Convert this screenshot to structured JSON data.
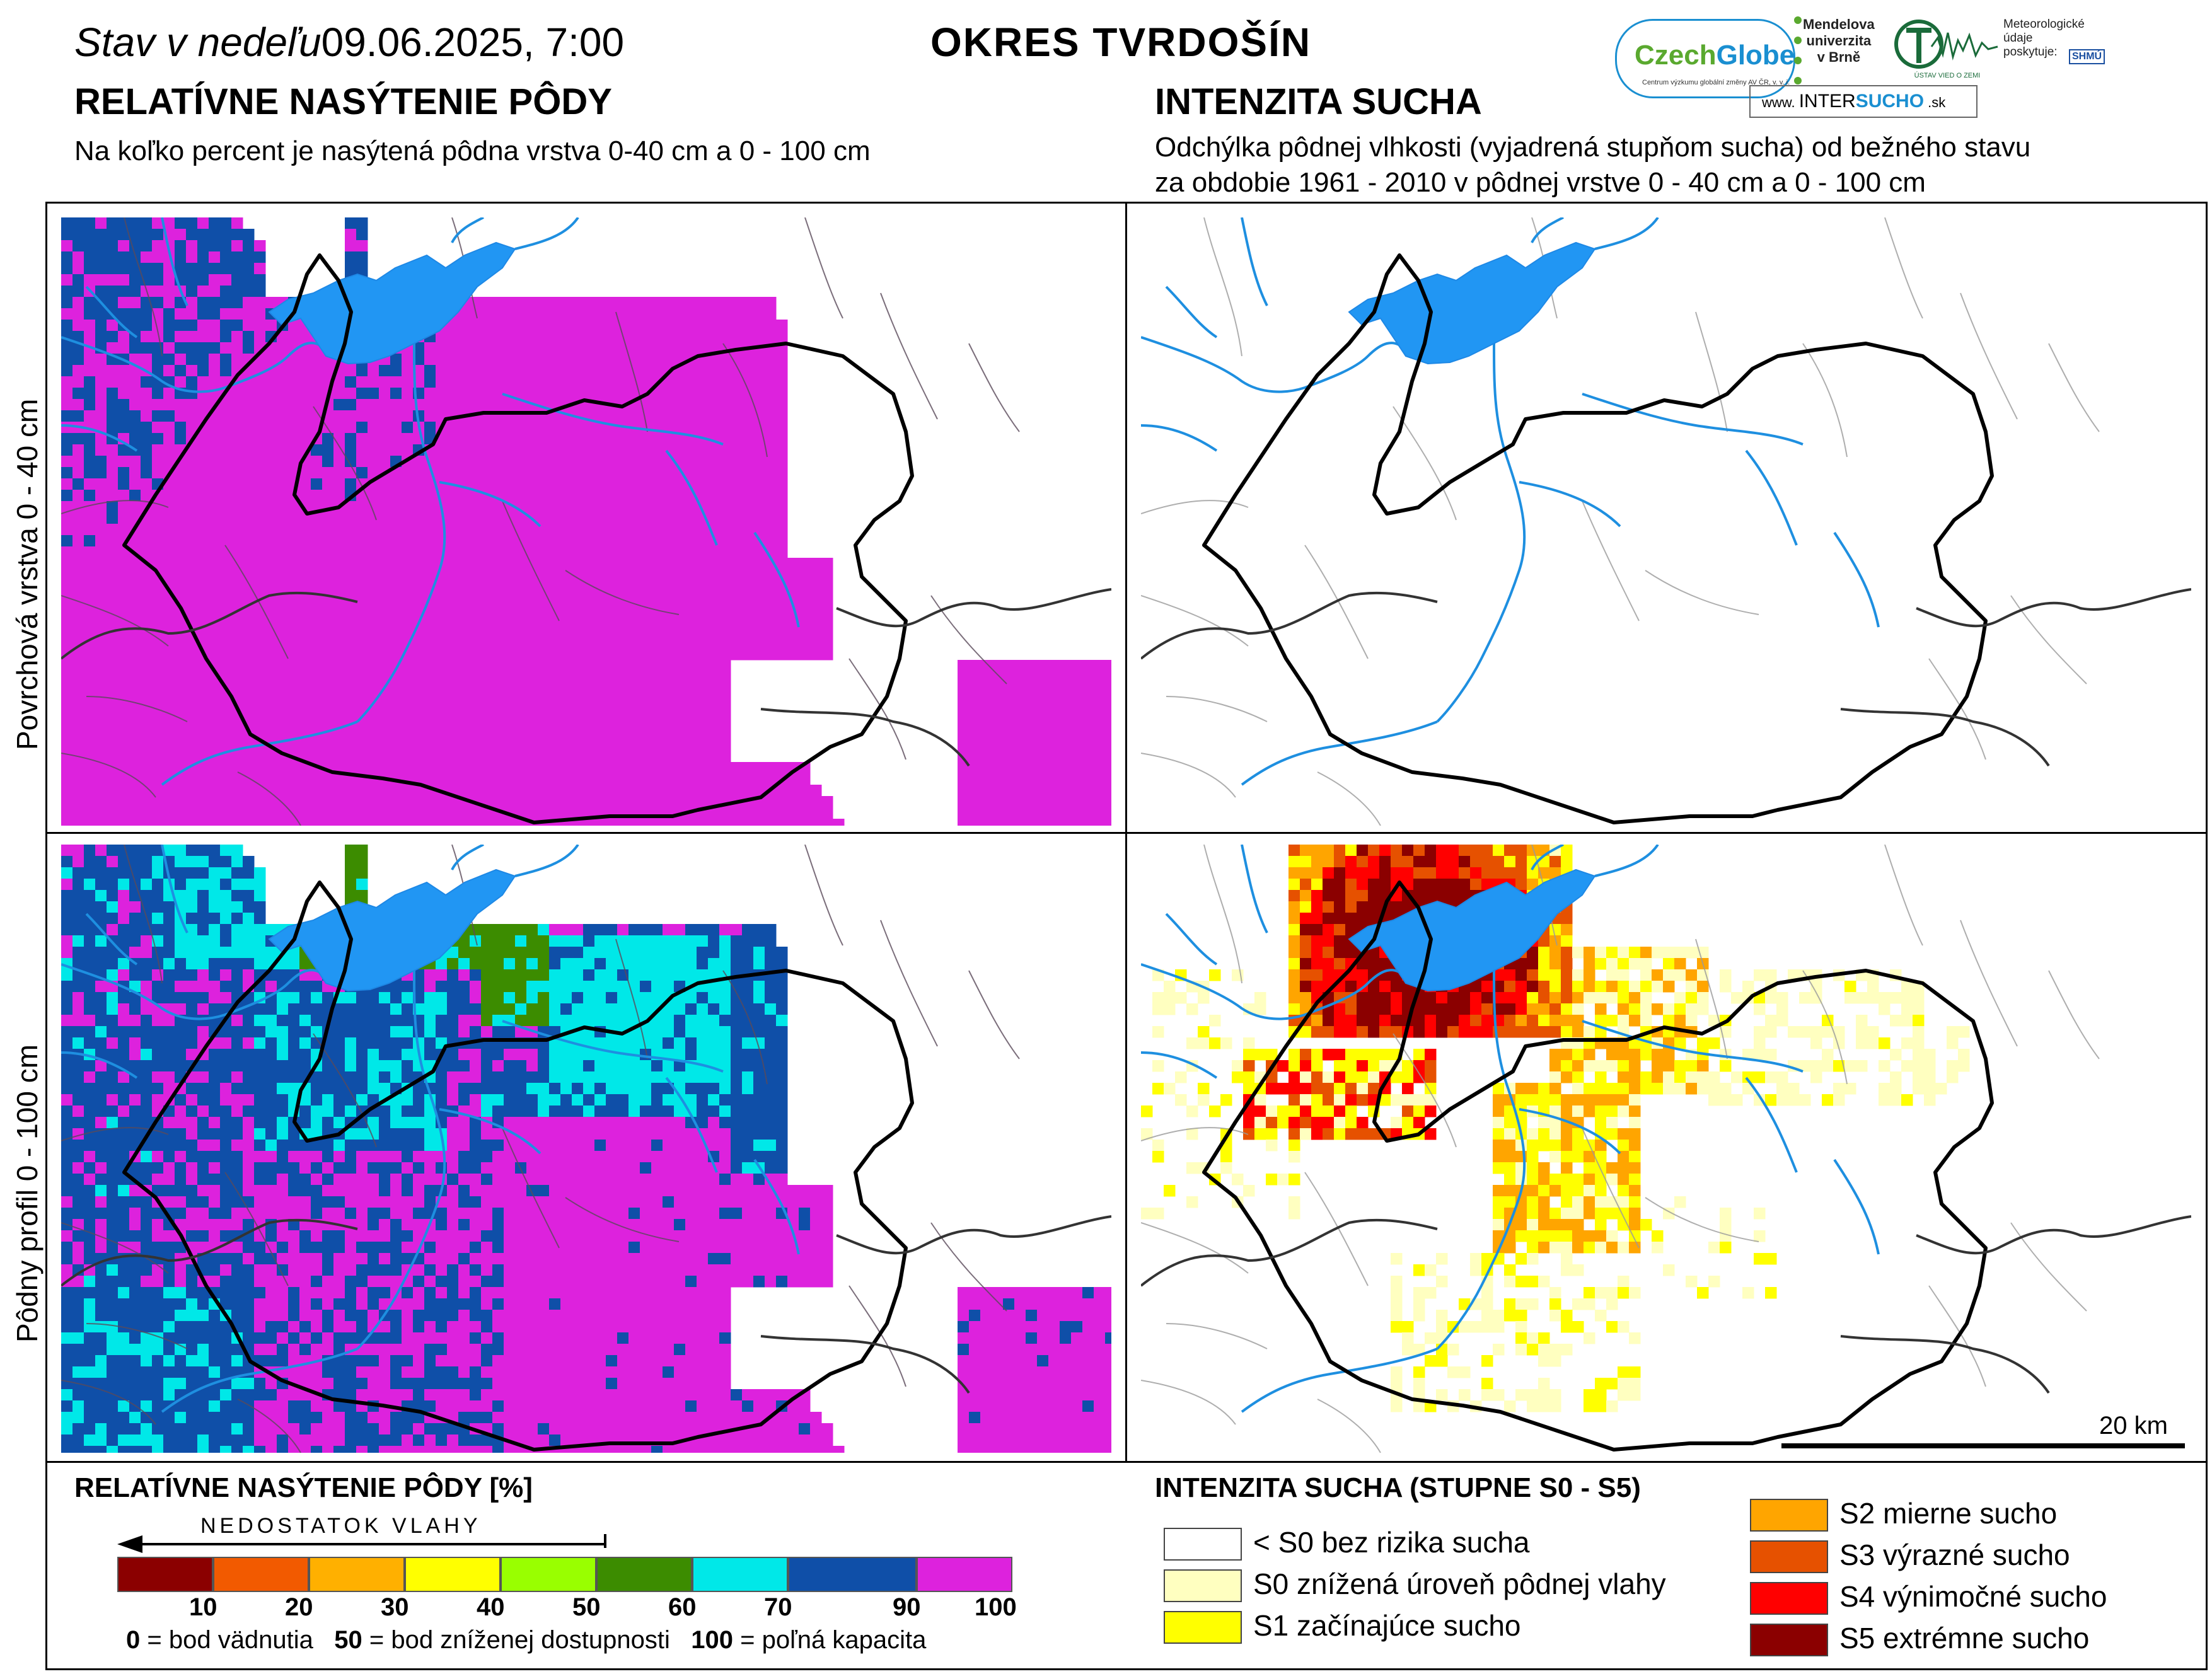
{
  "header": {
    "status_prefix": "Stav v nedeľu",
    "status_date": "09.06.2025, 7:00",
    "district": "OKRES  TVRDOŠÍN"
  },
  "left_section": {
    "title": "RELATÍVNE NASÝTENIE PÔDY",
    "subtitle": "Na koľko percent je nasýtená pôdna vrstva 0-40 cm a 0 - 100 cm"
  },
  "right_section": {
    "title": "INTENZITA SUCHA",
    "subtitle_line1": "Odchýlka pôdnej vlhkosti (vyjadrená stupňom sucha) od bežného stavu",
    "subtitle_line2": "za obdobie 1961 - 2010 v pôdnej vrstve 0 - 40 cm a 0 - 100 cm"
  },
  "row_labels": {
    "top": "Povrchová vrstva 0 - 40 cm",
    "bottom": "Pôdny profil 0 - 100 cm"
  },
  "logos": {
    "czechglobe_a": "Czech",
    "czechglobe_b": "Globe",
    "czechglobe_sub": "Centrum výzkumu globální změny AV ČR, v. v. i.",
    "mendel_1": "Mendelova",
    "mendel_2": "univerzita",
    "mendel_3": "v Brně",
    "uvz": "ÚSTAV VIED O ZEMI",
    "meteo_1": "Meteorologické",
    "meteo_2": "údaje",
    "meteo_3": "poskytuje:",
    "shmu": "SHMÚ",
    "intersucho_a": "www. ",
    "intersucho_b": "INTER",
    "intersucho_c": "SUCHO",
    "intersucho_d": " .sk"
  },
  "scale_bar": {
    "label": "20 km"
  },
  "legend_saturation": {
    "title": "RELATÍVNE NASÝTENIE PÔDY [%]",
    "arrow_label": "NEDOSTATOK VLAHY",
    "colors": [
      "#8b0000",
      "#f25a00",
      "#ffb000",
      "#ffff00",
      "#99ff00",
      "#3c8c00",
      "#00e8e8",
      "#0f4fa8",
      "#dd22dd"
    ],
    "ticks": [
      "10",
      "20",
      "30",
      "40",
      "50",
      "60",
      "70",
      "90",
      "100"
    ],
    "note_0_val": "0",
    "note_0_txt": " = bod vädnutia",
    "note_50_val": "50",
    "note_50_txt": " = bod zníženej dostupnosti",
    "note_100_val": "100",
    "note_100_txt": " = poľná kapacita"
  },
  "legend_drought": {
    "title": "INTENZITA SUCHA (STUPNE S0 - S5)",
    "items": [
      {
        "label": "< S0 bez rizika sucha",
        "color": "#ffffff"
      },
      {
        "label": "S0 znížená úroveň pôdnej vlahy",
        "color": "#ffffc0"
      },
      {
        "label": "S1 začínajúce sucho",
        "color": "#ffff00"
      },
      {
        "label": "S2 mierne sucho",
        "color": "#ffa500"
      },
      {
        "label": "S3 výrazné sucho",
        "color": "#e65100"
      },
      {
        "label": "S4 výnimočné sucho",
        "color": "#ff0000"
      },
      {
        "label": "S5 extrémne sucho",
        "color": "#8b0000"
      }
    ]
  }
}
